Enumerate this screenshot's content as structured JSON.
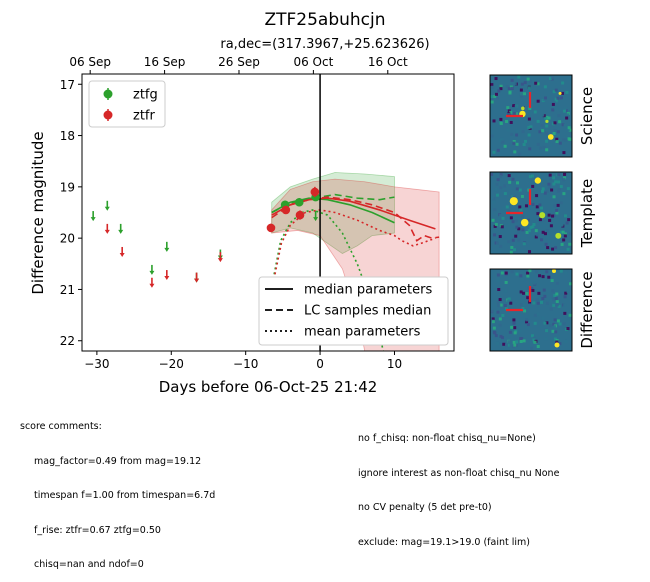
{
  "chart_data": {
    "type": "scatter",
    "title": "ZTF25abuhcjn",
    "subtitle": "ra,dec=(317.3967,+25.623626)",
    "xlabel": "Days before 06-Oct-25 21:42",
    "ylabel": "Difference magnitude",
    "xlim": [
      -32,
      18
    ],
    "ylim": [
      22.2,
      16.8
    ],
    "y_inverted": true,
    "xticks": [
      -30,
      -20,
      -10,
      0,
      10
    ],
    "yticks": [
      17,
      18,
      19,
      20,
      21,
      22
    ],
    "top_axis": {
      "ticks": [
        {
          "x": -30.9,
          "label": "06 Sep"
        },
        {
          "x": -20.9,
          "label": "16 Sep"
        },
        {
          "x": -10.9,
          "label": "26 Sep"
        },
        {
          "x": -0.9,
          "label": "06 Oct"
        },
        {
          "x": 9.1,
          "label": "16 Oct"
        }
      ]
    },
    "legend_points": [
      {
        "name": "ztfg",
        "color": "#2ca02c"
      },
      {
        "name": "ztfr",
        "color": "#d62728"
      }
    ],
    "legend_lines": [
      {
        "name": "median parameters",
        "style": "solid"
      },
      {
        "name": "LC samples median",
        "style": "dashed"
      },
      {
        "name": "mean parameters",
        "style": "dotted"
      }
    ],
    "series": [
      {
        "name": "ztfg",
        "color": "#2ca02c",
        "upper_limits": [
          [
            -30.5,
            19.55
          ],
          [
            -28.6,
            19.35
          ],
          [
            -26.8,
            19.8
          ],
          [
            -22.6,
            20.6
          ],
          [
            -20.6,
            20.15
          ],
          [
            -16.6,
            20.75
          ],
          [
            -13.4,
            20.3
          ],
          [
            -0.6,
            19.55
          ]
        ],
        "detections": [
          [
            -4.7,
            19.35,
            0.08
          ],
          [
            -2.8,
            19.3,
            0.08
          ],
          [
            -0.6,
            19.2,
            0.07
          ]
        ]
      },
      {
        "name": "ztfr",
        "color": "#d62728",
        "upper_limits": [
          [
            -28.6,
            19.8
          ],
          [
            -26.6,
            20.25
          ],
          [
            -22.6,
            20.85
          ],
          [
            -20.6,
            20.7
          ],
          [
            -16.6,
            20.75
          ],
          [
            -13.4,
            20.35
          ]
        ],
        "detections": [
          [
            -6.6,
            19.8,
            0.08
          ],
          [
            -4.6,
            19.45,
            0.08
          ],
          [
            -2.7,
            19.55,
            0.09
          ],
          [
            -0.7,
            19.1,
            0.1
          ]
        ]
      }
    ],
    "model_curves": [
      {
        "band": "ztfg",
        "style": "solid",
        "points": [
          [
            -6.5,
            19.5
          ],
          [
            -4,
            19.3
          ],
          [
            -1.5,
            19.22
          ],
          [
            1,
            19.25
          ],
          [
            4,
            19.35
          ],
          [
            7,
            19.5
          ],
          [
            10,
            19.7
          ]
        ]
      },
      {
        "band": "ztfg",
        "style": "dashed",
        "points": [
          [
            -6.5,
            19.5
          ],
          [
            -4.5,
            19.35
          ],
          [
            -2,
            19.25
          ],
          [
            0,
            19.2
          ],
          [
            2,
            19.15
          ],
          [
            5,
            19.22
          ],
          [
            8,
            19.25
          ],
          [
            10,
            19.2
          ]
        ]
      },
      {
        "band": "ztfg",
        "style": "dotted",
        "points": [
          [
            -6.3,
            20.8
          ],
          [
            -5.3,
            20.05
          ],
          [
            -4,
            19.7
          ],
          [
            -2.5,
            19.5
          ],
          [
            -1,
            19.45
          ],
          [
            1,
            19.55
          ],
          [
            3,
            19.9
          ],
          [
            5,
            20.5
          ],
          [
            7,
            21.3
          ],
          [
            8.5,
            22.2
          ]
        ]
      },
      {
        "band": "ztfr",
        "style": "solid",
        "points": [
          [
            -6.5,
            19.55
          ],
          [
            -4,
            19.35
          ],
          [
            -1.5,
            19.25
          ],
          [
            1,
            19.22
          ],
          [
            4,
            19.28
          ],
          [
            8,
            19.45
          ],
          [
            12,
            19.65
          ],
          [
            15.5,
            19.82
          ]
        ]
      },
      {
        "band": "ztfr",
        "style": "dashed",
        "points": [
          [
            -6.5,
            19.6
          ],
          [
            -4,
            19.35
          ],
          [
            -1.5,
            19.25
          ],
          [
            1,
            19.2
          ],
          [
            4,
            19.25
          ],
          [
            7,
            19.35
          ],
          [
            10,
            19.5
          ],
          [
            12,
            19.75
          ],
          [
            13,
            20.05
          ],
          [
            14,
            19.95
          ],
          [
            15,
            20.0
          ],
          [
            16,
            19.98
          ]
        ]
      },
      {
        "band": "ztfr",
        "style": "dotted",
        "points": [
          [
            -6.2,
            20.8
          ],
          [
            -5.2,
            20.1
          ],
          [
            -4,
            19.75
          ],
          [
            -2,
            19.5
          ],
          [
            0,
            19.45
          ],
          [
            2,
            19.5
          ],
          [
            5,
            19.65
          ],
          [
            8,
            19.85
          ],
          [
            10,
            19.95
          ],
          [
            11,
            20.05
          ],
          [
            12.5,
            20.15
          ],
          [
            14,
            20.08
          ],
          [
            15.5,
            20.0
          ]
        ]
      }
    ],
    "model_bands": [
      {
        "band": "ztfg",
        "color": "#2ca02c",
        "upper": [
          [
            -6.5,
            19.3
          ],
          [
            -4,
            19.0
          ],
          [
            -1,
            18.85
          ],
          [
            2,
            18.72
          ],
          [
            6,
            18.75
          ],
          [
            10,
            18.8
          ]
        ],
        "lower": [
          [
            -6.5,
            19.9
          ],
          [
            -4,
            19.8
          ],
          [
            -1,
            19.9
          ],
          [
            1,
            20.1
          ],
          [
            3,
            20.3
          ],
          [
            5,
            20.15
          ],
          [
            7,
            19.95
          ],
          [
            10,
            19.9
          ]
        ]
      },
      {
        "band": "ztfr",
        "color": "#d62728",
        "upper": [
          [
            -6.5,
            19.45
          ],
          [
            -4,
            19.05
          ],
          [
            -1,
            18.9
          ],
          [
            2,
            18.85
          ],
          [
            6,
            18.9
          ],
          [
            10,
            19.0
          ],
          [
            13,
            19.05
          ],
          [
            16,
            19.1
          ]
        ],
        "lower": [
          [
            -6.5,
            19.9
          ],
          [
            -3,
            19.85
          ],
          [
            0,
            19.95
          ],
          [
            3,
            20.6
          ],
          [
            5,
            21.5
          ],
          [
            6,
            22.2
          ],
          [
            16,
            22.2
          ]
        ]
      }
    ],
    "reference_line_x": 0,
    "cutouts": [
      "Science",
      "Template",
      "Difference"
    ]
  },
  "comments": {
    "header": "score comments:",
    "left": [
      "mag_factor=0.49 from mag=19.12",
      "timespan f=1.00 from timespan=6.7d",
      "f_rise: ztfr=0.67 ztfg=0.50",
      "chisq=nan and ndof=0"
    ],
    "right": [
      "no f_chisq: non-float chisq_nu=None)",
      "ignore interest as non-float chisq_nu None",
      "no CV penalty (5 det pre-t0)",
      "exclude: mag=19.1>19.0 (faint lim)"
    ]
  }
}
